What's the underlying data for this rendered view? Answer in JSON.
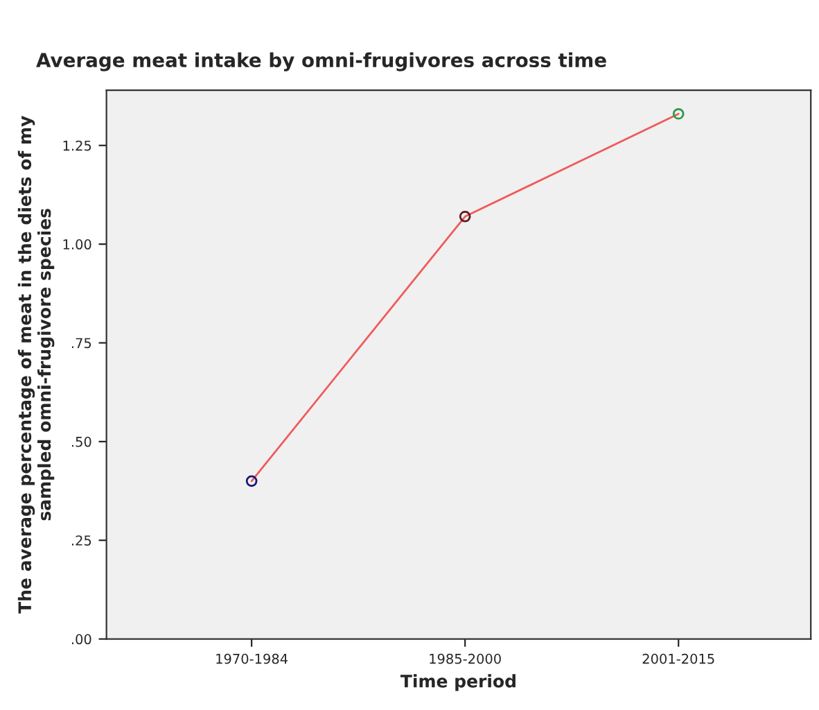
{
  "chart_data": {
    "type": "line",
    "title": "Average meat intake by omni-frugivores across time",
    "xlabel": "Time period",
    "ylabel": "The average percentage of meat in the diets of my\nsampled omni-frugivore species",
    "categories": [
      "1970-1984",
      "1985-2000",
      "2001-2015"
    ],
    "series": [
      {
        "color": "#f05a5a",
        "colors": [
          "#1a1a7a",
          "#5a1a1a",
          "#2a9a4a"
        ],
        "values": [
          0.4,
          1.07,
          1.33
        ]
      }
    ],
    "ylim": [
      0,
      1.39
    ],
    "yticks": [
      {
        "value": 0,
        "label": ".00"
      },
      {
        "value": 0.25,
        "label": ".25"
      },
      {
        "value": 0.5,
        "label": ".50"
      },
      {
        "value": 0.75,
        "label": ".75"
      },
      {
        "value": 1.0,
        "label": "1.00"
      },
      {
        "value": 1.25,
        "label": "1.25"
      }
    ],
    "grid": false,
    "legend": false,
    "marker": "circle",
    "line_style": "solid"
  }
}
